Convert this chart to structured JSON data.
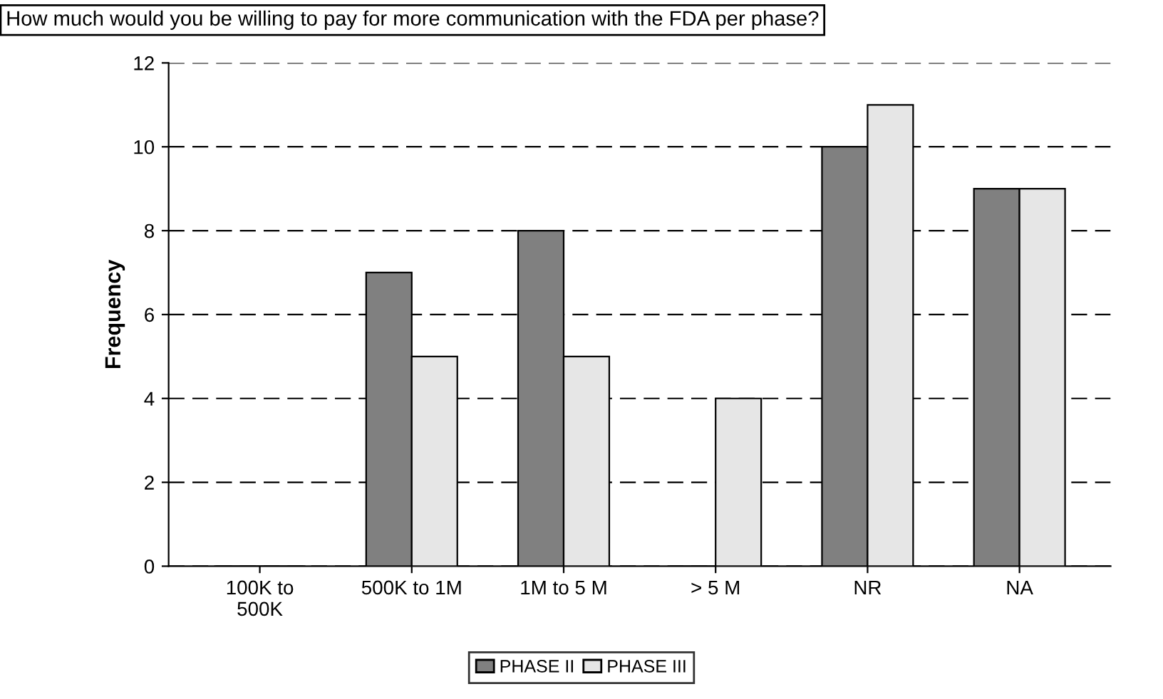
{
  "chart_data": {
    "type": "bar",
    "title": "How much would you be willing to pay for more communication with the FDA per phase?",
    "ylabel": "Frequency",
    "categories": [
      "100K to\n500K",
      "500K to 1M",
      "1M to 5 M",
      "> 5 M",
      "NR",
      "NA"
    ],
    "series": [
      {
        "name": "PHASE II",
        "color": "#808080",
        "values": [
          0,
          7,
          8,
          0,
          10,
          9
        ]
      },
      {
        "name": "PHASE III",
        "color": "#e6e6e6",
        "values": [
          0,
          5,
          5,
          4,
          11,
          9
        ]
      }
    ],
    "ylim": [
      0,
      12
    ],
    "yticks": [
      0,
      2,
      4,
      6,
      8,
      10,
      12
    ],
    "grid": "y",
    "line_style": "dashed",
    "legend": "bottom"
  }
}
